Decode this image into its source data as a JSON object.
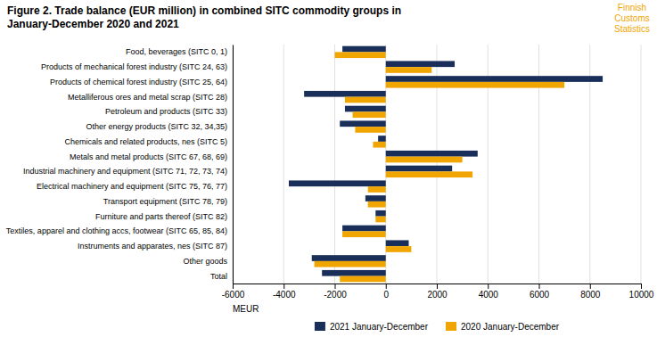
{
  "chart_data": {
    "type": "bar",
    "orientation": "horizontal",
    "title": "Figure 2. Trade balance (EUR million) in combined SITC commodity groups in",
    "subtitle": "January-December 2020 and 2021",
    "annotation": "Finnish\nCustoms\nStatistics",
    "xlabel": "MEUR",
    "categories": [
      "Food, beverages (SITC 0, 1)",
      "Products of mechanical forest industry (SITC 24, 63)",
      "Products of chemical forest industry (SITC 25, 64)",
      "Metalliferous ores and metal scrap (SITC 28)",
      "Petroleum and products (SITC 33)",
      "Other energy products (SITC 32, 34,35)",
      "Chemicals and related products, nes (SITC 5)",
      "Metals and metal products (SITC 67, 68, 69)",
      "Industrial machinery and equipment (SITC 71, 72, 73, 74)",
      "Electrical machinery and equipment (SITC 75, 76, 77)",
      "Transport equipment (SITC 78, 79)",
      "Furniture and parts thereof (SITC 82)",
      "Textiles, apparel and clothing accs, footwear (SITC 65, 85, 84)",
      "Instruments and apparates, nes (SITC 87)",
      "Other goods",
      "Total"
    ],
    "series": [
      {
        "name": "2021 January-December",
        "color": "#1a2e5a",
        "values": [
          -1700,
          2700,
          8500,
          -3200,
          -1600,
          -1800,
          -300,
          3600,
          2600,
          -3800,
          -800,
          -400,
          -1700,
          900,
          -2900,
          -2500
        ]
      },
      {
        "name": "2020 January-December",
        "color": "#f0a500",
        "values": [
          -2000,
          1800,
          7000,
          -1600,
          -1300,
          -1200,
          -500,
          3000,
          3400,
          -700,
          -700,
          -400,
          -1700,
          1000,
          -2800,
          -1800
        ]
      }
    ],
    "xlim": [
      -6000,
      10000
    ],
    "xticks": [
      -6000,
      -4000,
      -2000,
      0,
      2000,
      4000,
      6000,
      8000,
      10000
    ],
    "grid": true,
    "legend": "bottom"
  }
}
